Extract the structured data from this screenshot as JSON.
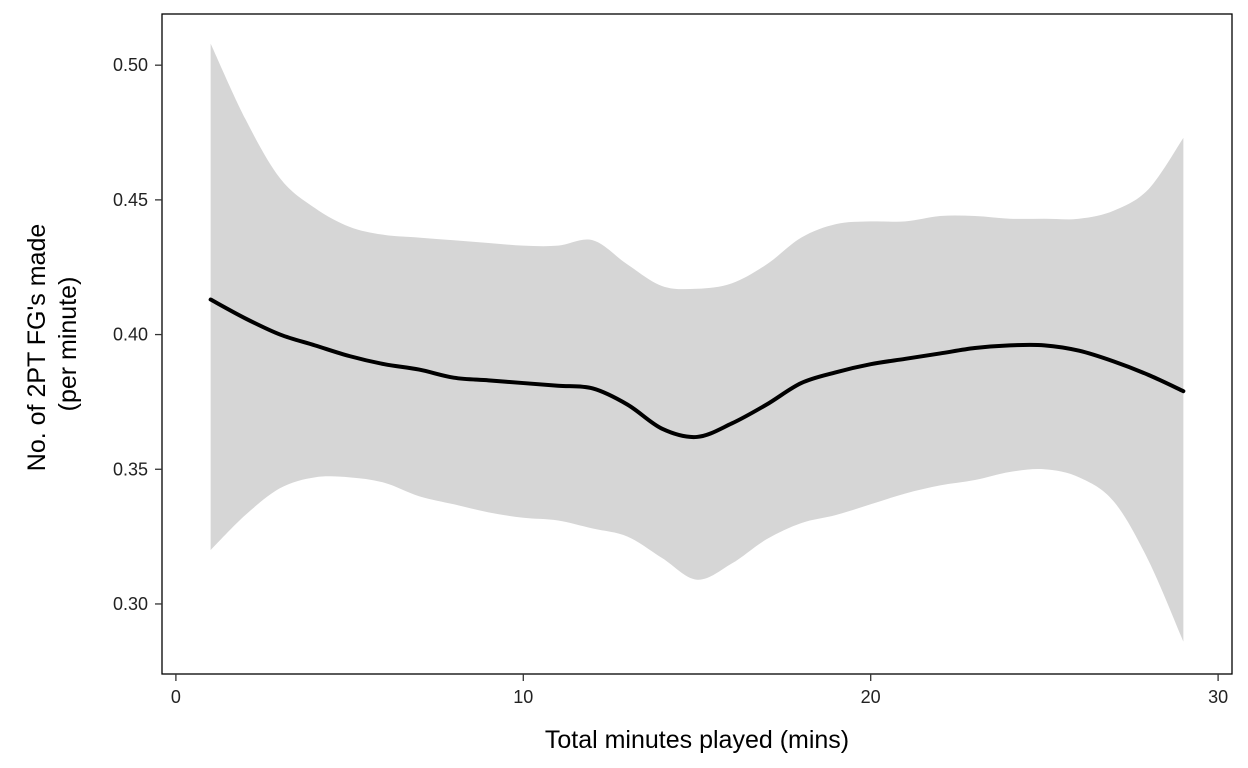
{
  "chart_data": {
    "type": "line",
    "title": "",
    "xlabel": "Total minutes played (mins)",
    "ylabel_lines": [
      "No. of 2PT FG's made",
      "(per minute)"
    ],
    "xlim": [
      -0.4,
      30.4
    ],
    "ylim": [
      0.274,
      0.519
    ],
    "x_ticks": [
      0,
      10,
      20,
      30
    ],
    "y_ticks": [
      0.3,
      0.35,
      0.4,
      0.45,
      0.5
    ],
    "x_tick_labels": [
      "0",
      "10",
      "20",
      "30"
    ],
    "y_tick_labels": [
      "0.30",
      "0.35",
      "0.40",
      "0.45",
      "0.50"
    ],
    "grid": false,
    "legend": "none",
    "colors": {
      "line": "#000000",
      "band": "#d6d6d6",
      "frame": "#000000"
    },
    "series": [
      {
        "x": [
          1,
          2,
          3,
          4,
          5,
          6,
          7,
          8,
          9,
          10,
          11,
          12,
          13,
          14,
          15,
          16,
          17,
          18,
          19,
          20,
          21,
          22,
          23,
          24,
          25,
          26,
          27,
          28,
          29
        ],
        "fit": [
          0.413,
          0.406,
          0.4,
          0.396,
          0.392,
          0.389,
          0.387,
          0.384,
          0.383,
          0.382,
          0.381,
          0.38,
          0.374,
          0.365,
          0.362,
          0.367,
          0.374,
          0.382,
          0.386,
          0.389,
          0.391,
          0.393,
          0.395,
          0.396,
          0.396,
          0.394,
          0.39,
          0.385,
          0.379
        ],
        "upper": [
          0.508,
          0.48,
          0.458,
          0.447,
          0.44,
          0.437,
          0.436,
          0.435,
          0.434,
          0.433,
          0.433,
          0.435,
          0.426,
          0.418,
          0.417,
          0.419,
          0.426,
          0.436,
          0.441,
          0.442,
          0.442,
          0.444,
          0.444,
          0.443,
          0.443,
          0.443,
          0.446,
          0.454,
          0.473
        ],
        "lower": [
          0.32,
          0.333,
          0.343,
          0.347,
          0.347,
          0.345,
          0.34,
          0.337,
          0.334,
          0.332,
          0.331,
          0.328,
          0.325,
          0.317,
          0.309,
          0.315,
          0.324,
          0.33,
          0.333,
          0.337,
          0.341,
          0.344,
          0.346,
          0.349,
          0.35,
          0.347,
          0.338,
          0.316,
          0.286
        ]
      }
    ]
  }
}
